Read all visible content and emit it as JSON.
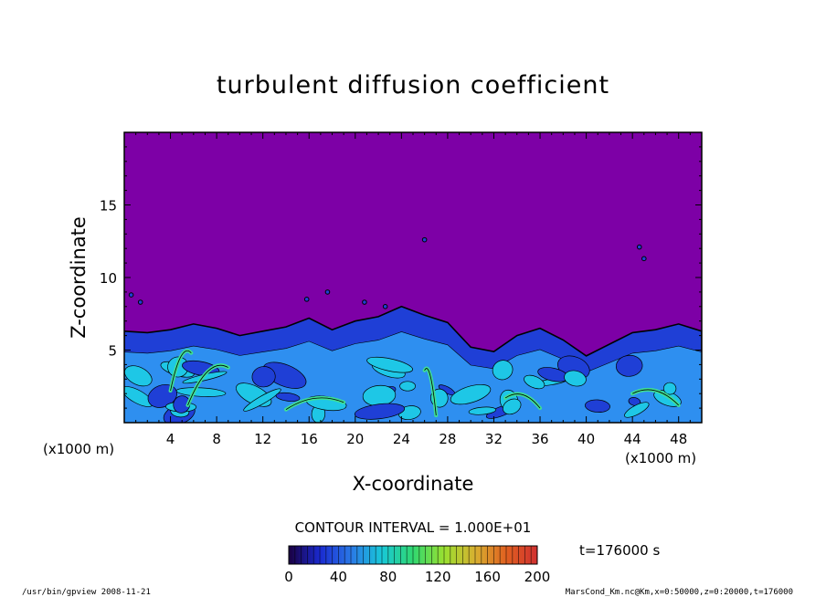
{
  "chart_data": {
    "type": "heatmap",
    "title": "turbulent diffusion coefficient",
    "xlabel": "X-coordinate",
    "ylabel": "Z-coordinate",
    "x_unit": "(x1000 m)",
    "z_unit": "(x1000 m)",
    "xlim": [
      0,
      50
    ],
    "zlim": [
      0,
      20
    ],
    "x_ticks": [
      4,
      8,
      12,
      16,
      20,
      24,
      28,
      32,
      36,
      40,
      44,
      48
    ],
    "z_ticks": [
      5,
      10,
      15
    ],
    "contour_interval_label": "CONTOUR INTERVAL = 1.000E+01",
    "time_label": "t=176000 s",
    "colorbar": {
      "ticks": [
        0,
        40,
        80,
        120,
        160,
        200
      ],
      "range": [
        0,
        200
      ],
      "stops": [
        "#1a0040",
        "#1a2ad0",
        "#2a78e6",
        "#18c8d8",
        "#30d870",
        "#9ae030",
        "#d8b030",
        "#e06020",
        "#d03030"
      ]
    },
    "field_colors": {
      "upper_layer": "#7d00a6",
      "boundary_layer_dark": "#1f3fd6",
      "boundary_layer_mid": "#2e8ff0",
      "boundary_layer_light": "#1ec7e6",
      "high_values": "#3ee094"
    },
    "boundary_layer_top_profile": {
      "x": [
        0,
        2,
        4,
        6,
        8,
        10,
        12,
        14,
        16,
        18,
        20,
        22,
        24,
        26,
        28,
        30,
        32,
        34,
        36,
        38,
        40,
        42,
        44,
        46,
        48,
        50
      ],
      "z": [
        6.3,
        6.2,
        6.4,
        6.8,
        6.5,
        6.0,
        6.3,
        6.6,
        7.2,
        6.4,
        7.0,
        7.3,
        8.0,
        7.4,
        6.9,
        5.2,
        4.9,
        6.0,
        6.5,
        5.7,
        4.6,
        5.4,
        6.2,
        6.4,
        6.8,
        6.3
      ]
    }
  },
  "footer": {
    "left": "/usr/bin/gpview   2008-11-21",
    "right": "MarsCond_Km.nc@Km,x=0:50000,z=0:20000,t=176000"
  }
}
